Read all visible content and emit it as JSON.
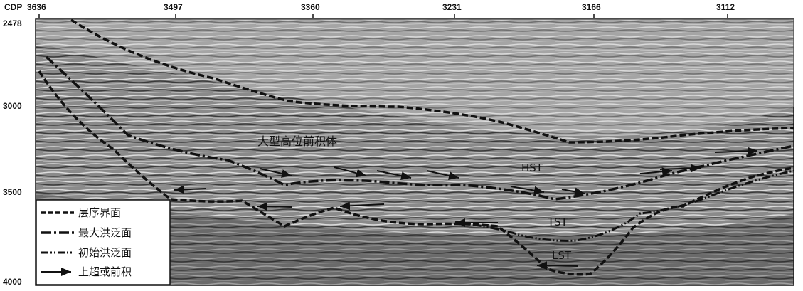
{
  "axis": {
    "cdp_label": "CDP",
    "cdp_ticks": [
      "3636",
      "3497",
      "3360",
      "3231",
      "3166",
      "3112"
    ],
    "time_ticks": [
      "2478",
      "3000",
      "3500",
      "4000"
    ]
  },
  "annotations": {
    "body": "大型高位前积体",
    "hst": "HST",
    "tst": "TST",
    "lst": "LST"
  },
  "legend": {
    "items": [
      {
        "label": "层序界面",
        "style": "sequence-boundary"
      },
      {
        "label": "最大洪泛面",
        "style": "maximum-flooding-surface"
      },
      {
        "label": "初始洪泛面",
        "style": "initial-flooding-surface"
      },
      {
        "label": "上超或前积",
        "style": "onlap-arrow"
      }
    ]
  },
  "colors": {
    "background_seismic": "#8c8c8c",
    "line": "#111111",
    "legend_bg": "#ffffff"
  }
}
